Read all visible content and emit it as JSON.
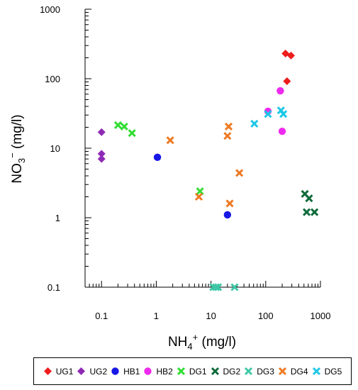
{
  "chart_data": {
    "type": "scatter",
    "x_scale": "log",
    "y_scale": "log",
    "xlim": [
      0.05,
      1000
    ],
    "ylim": [
      0.1,
      1000
    ],
    "x_ticks": [
      {
        "value": 0.1,
        "label": "0.1"
      },
      {
        "value": 1,
        "label": "1"
      },
      {
        "value": 10,
        "label": "10"
      },
      {
        "value": 100,
        "label": "100"
      },
      {
        "value": 1000,
        "label": "1000"
      }
    ],
    "y_ticks": [
      {
        "value": 0.1,
        "label": "0.1"
      },
      {
        "value": 1,
        "label": "1"
      },
      {
        "value": 10,
        "label": "10"
      },
      {
        "value": 100,
        "label": "100"
      },
      {
        "value": 1000,
        "label": "1000"
      }
    ],
    "xlabel": {
      "main": "NH",
      "sub": "4",
      "sup": "+",
      "rest": " (mg/l)"
    },
    "ylabel": {
      "main": "NO",
      "sub": "3",
      "sup": "−",
      "rest": " (mg/l)"
    },
    "grid": false,
    "legend_position": "bottom",
    "series": [
      {
        "name": "UG1",
        "marker": "diamond",
        "color": "#ee1c1c",
        "points": [
          [
            230,
            230
          ],
          [
            290,
            215
          ],
          [
            245,
            92
          ]
        ]
      },
      {
        "name": "UG2",
        "marker": "diamond",
        "color": "#8e2bb5",
        "points": [
          [
            0.1,
            17
          ],
          [
            0.1,
            8.3
          ],
          [
            0.1,
            7
          ]
        ]
      },
      {
        "name": "HB1",
        "marker": "circle",
        "color": "#1717e6",
        "points": [
          [
            1.05,
            7.4
          ],
          [
            20,
            1.1
          ]
        ]
      },
      {
        "name": "HB2",
        "marker": "circle",
        "color": "#ee2aee",
        "points": [
          [
            110,
            34
          ],
          [
            185,
            67
          ],
          [
            200,
            17.5
          ]
        ]
      },
      {
        "name": "DG1",
        "marker": "x",
        "color": "#33dd33",
        "points": [
          [
            0.2,
            21.5
          ],
          [
            0.26,
            20.5
          ],
          [
            0.36,
            16.5
          ],
          [
            6.3,
            2.4
          ]
        ]
      },
      {
        "name": "DG2",
        "marker": "x",
        "color": "#0e6b3a",
        "points": [
          [
            520,
            2.2
          ],
          [
            620,
            1.9
          ],
          [
            560,
            1.2
          ],
          [
            780,
            1.2
          ]
        ]
      },
      {
        "name": "DG3",
        "marker": "x",
        "color": "#3ec7a6",
        "points": [
          [
            11,
            0.1
          ],
          [
            12.3,
            0.1
          ],
          [
            13.5,
            0.1
          ],
          [
            27,
            0.1
          ]
        ]
      },
      {
        "name": "DG4",
        "marker": "x",
        "color": "#ee7a22",
        "points": [
          [
            1.8,
            13
          ],
          [
            6,
            2
          ],
          [
            20,
            15
          ],
          [
            21,
            20.5
          ],
          [
            22,
            1.6
          ],
          [
            33,
            4.4
          ]
        ]
      },
      {
        "name": "DG5",
        "marker": "x",
        "color": "#1ec8e6",
        "points": [
          [
            62,
            22.5
          ],
          [
            110,
            31
          ],
          [
            190,
            35
          ],
          [
            210,
            31
          ]
        ]
      }
    ]
  }
}
